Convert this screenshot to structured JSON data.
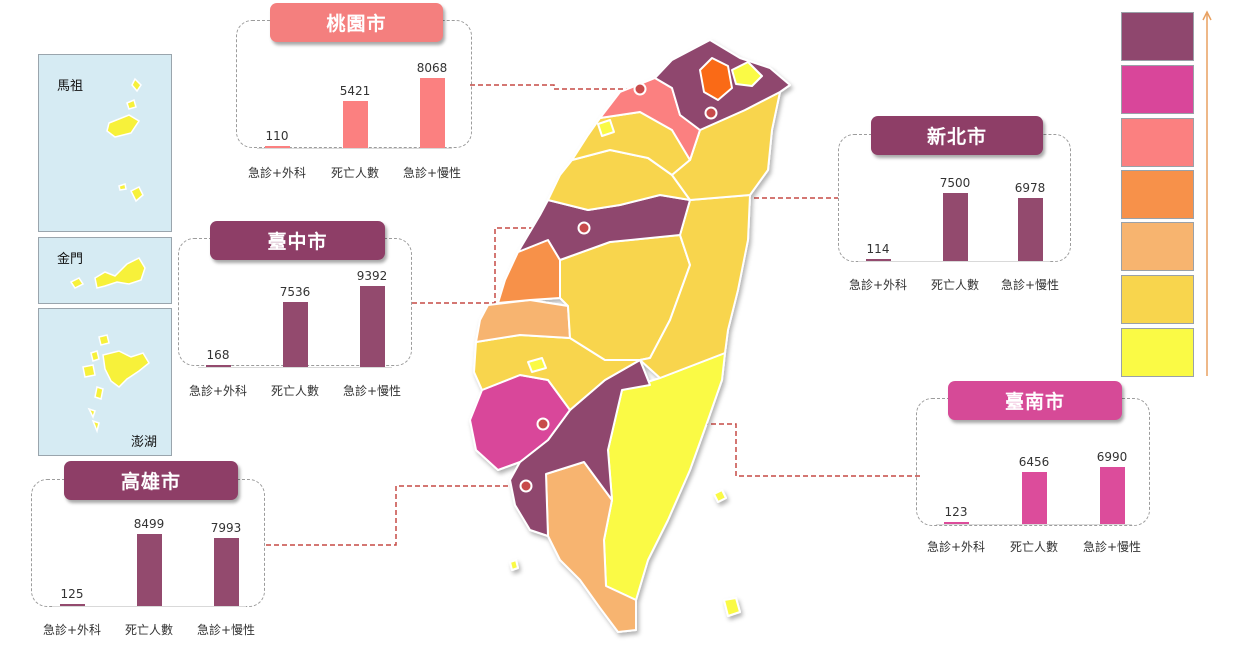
{
  "categories": [
    "急診+外科",
    "死亡人數",
    "急診+慢性"
  ],
  "cities": [
    {
      "name": "桃園市",
      "values": [
        110,
        5421,
        8068
      ],
      "tag_color": "#f47f7e",
      "bar_color": "#fb8080"
    },
    {
      "name": "新北市",
      "values": [
        114,
        7500,
        6978
      ],
      "tag_color": "#8e3e67",
      "bar_color": "#934a6e"
    },
    {
      "name": "臺中市",
      "values": [
        168,
        7536,
        9392
      ],
      "tag_color": "#8e3e67",
      "bar_color": "#934a6e"
    },
    {
      "name": "臺南市",
      "values": [
        123,
        6456,
        6990
      ],
      "tag_color": "#d64a97",
      "bar_color": "#dc4c9b"
    },
    {
      "name": "高雄市",
      "values": [
        125,
        8499,
        7993
      ],
      "tag_color": "#8e3e67",
      "bar_color": "#934a6e"
    }
  ],
  "insets": {
    "matsu": "馬祖",
    "kinmen": "金門",
    "penghu": "澎湖"
  },
  "legend_colors": [
    "#8f476e",
    "#d9469a",
    "#fb8080",
    "#f7914a",
    "#f7b46f",
    "#f8d54d",
    "#fafa45"
  ]
}
